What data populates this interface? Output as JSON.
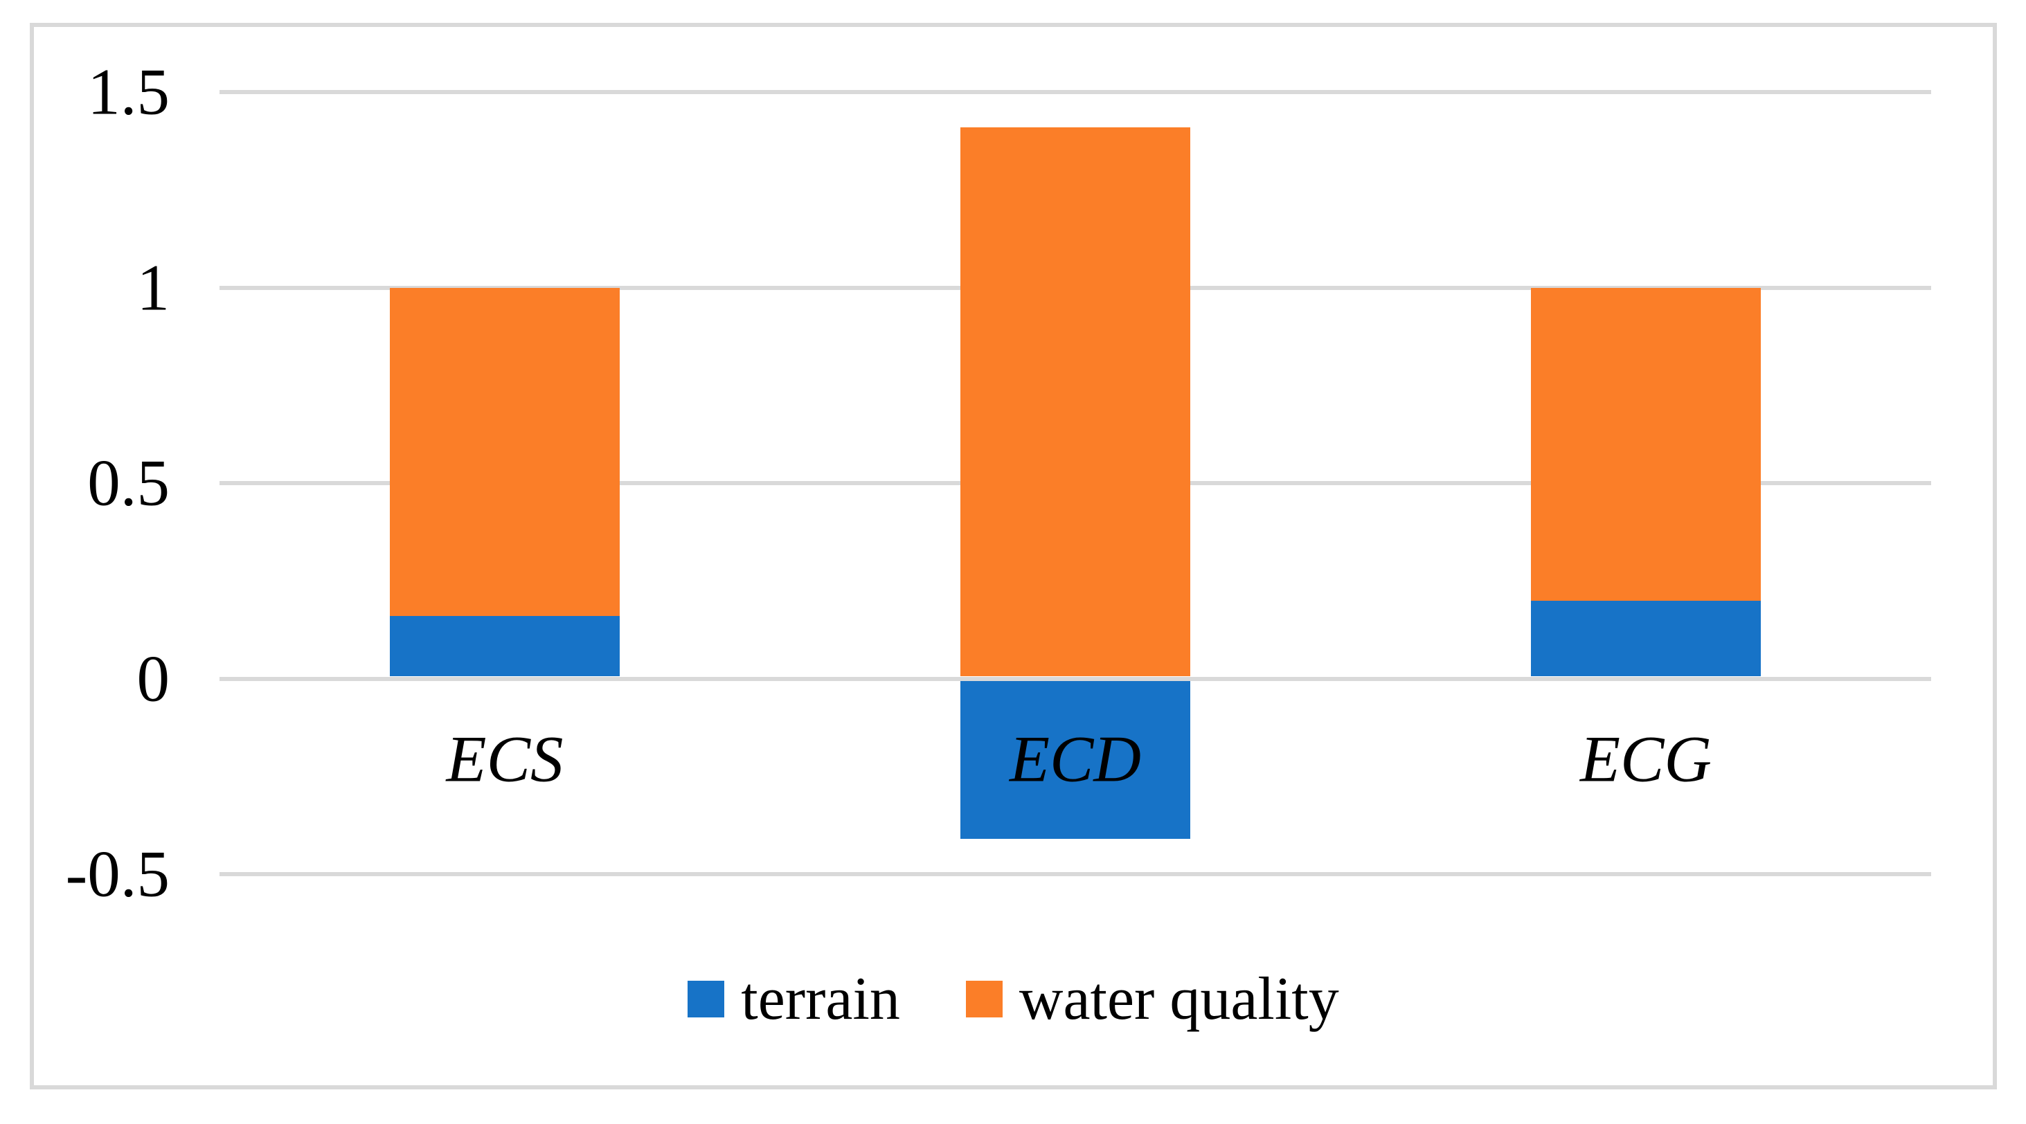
{
  "figure": {
    "background_color": "#ffffff",
    "border_color": "#d9d9d9",
    "gridline_color": "#d9d9d9",
    "text_color": "#000000"
  },
  "chart_data": {
    "type": "bar",
    "stacked": true,
    "title": "",
    "xlabel": "",
    "ylabel": "",
    "categories": [
      "ECS",
      "ECD",
      "ECG"
    ],
    "series": [
      {
        "name": "terrain",
        "color": "#1773c7",
        "values": [
          0.16,
          -0.41,
          0.2
        ]
      },
      {
        "name": "water quality",
        "color": "#fb7e28",
        "values": [
          0.84,
          1.41,
          0.8
        ]
      }
    ],
    "ylim": [
      -0.5,
      1.5
    ],
    "ytick_step": 0.5,
    "ytick_labels": [
      "1.5",
      "1",
      "0.5",
      "0",
      "-0.5"
    ],
    "grid": "horizontal",
    "legend_position": "bottom-center"
  }
}
